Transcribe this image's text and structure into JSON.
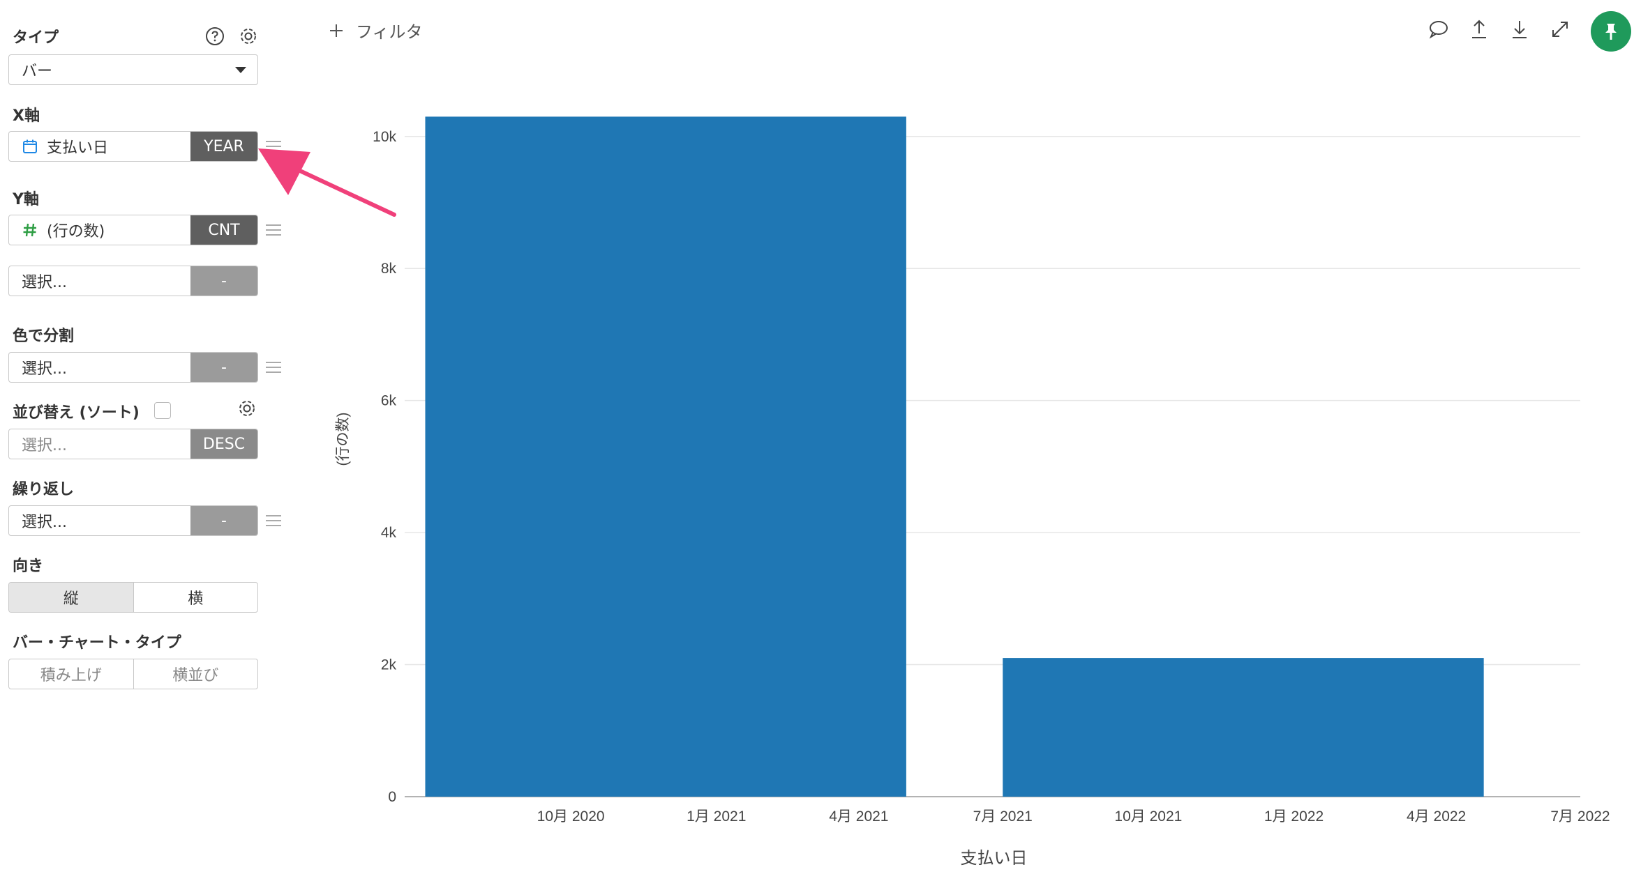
{
  "panel": {
    "type": {
      "label": "タイプ",
      "value": "バー"
    },
    "x_axis": {
      "label": "X軸",
      "field": "支払い日",
      "agg": "YEAR"
    },
    "y_axis": {
      "label": "Y軸",
      "field": "(行の数)",
      "agg": "CNT",
      "second_placeholder": "選択...",
      "second_agg": "-"
    },
    "color": {
      "label": "色で分割",
      "placeholder": "選択...",
      "agg": "-"
    },
    "sort": {
      "label": "並び替え (ソート)",
      "placeholder": "選択...",
      "agg": "DESC"
    },
    "repeat": {
      "label": "繰り返し",
      "placeholder": "選択...",
      "agg": "-"
    },
    "orientation": {
      "label": "向き",
      "options": [
        "縦",
        "横"
      ]
    },
    "bar_type": {
      "label": "バー・チャート・タイプ",
      "options": [
        "積み上げ",
        "横並び"
      ]
    }
  },
  "toolbar": {
    "filter_label": "フィルタ"
  },
  "icons": [
    "help-icon",
    "gear-icon",
    "calendar-icon",
    "hash-icon",
    "comment-icon",
    "upload-icon",
    "download-icon",
    "expand-icon",
    "pin-icon"
  ],
  "colors": {
    "bar": "#1f77b4",
    "accent_green": "#1f9a5b",
    "arrow": "#f0407a"
  },
  "chart_data": {
    "type": "bar",
    "x_type": "date",
    "categories": [
      "2020",
      "2021"
    ],
    "values": [
      10300,
      2100
    ],
    "bar_spans": [
      [
        "2020-07-01",
        "2021-05-01"
      ],
      [
        "2021-07-01",
        "2022-05-01"
      ]
    ],
    "x_ticks": [
      "10月 2020",
      "1月 2021",
      "4月 2021",
      "7月 2021",
      "10月 2021",
      "1月 2022",
      "4月 2022",
      "7月 2022"
    ],
    "x_tick_dates": [
      "2020-10-01",
      "2021-01-01",
      "2021-04-01",
      "2021-07-01",
      "2021-10-01",
      "2022-01-01",
      "2022-04-01",
      "2022-07-01"
    ],
    "y_ticks": [
      "0",
      "2k",
      "4k",
      "6k",
      "8k",
      "10k"
    ],
    "y_tick_values": [
      0,
      2000,
      4000,
      6000,
      8000,
      10000
    ],
    "ylim": [
      0,
      10800
    ],
    "xlim": [
      "2020-06-18",
      "2022-07-01"
    ],
    "xlabel": "支払い日",
    "ylabel": "(行の数)",
    "grid": true
  }
}
